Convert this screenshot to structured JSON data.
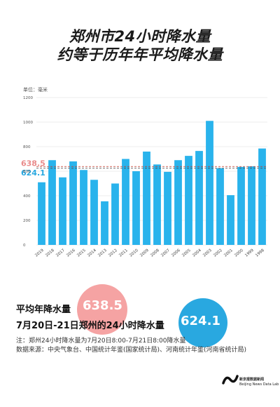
{
  "title_line1": "郑州市24小时降水量",
  "title_line2": "约等于历年年平均降水量",
  "unit_label": "单位：毫米",
  "chart_data": {
    "type": "bar",
    "categories": [
      "2019",
      "2018",
      "2017",
      "2016",
      "2015",
      "2014",
      "2013",
      "2012",
      "2011",
      "2010",
      "2009",
      "2008",
      "2007",
      "2006",
      "2005",
      "2004",
      "2003",
      "2002",
      "2001",
      "2000",
      "1999",
      "1998"
    ],
    "values": [
      510,
      690,
      550,
      680,
      610,
      530,
      355,
      500,
      700,
      600,
      760,
      655,
      595,
      690,
      725,
      765,
      1010,
      625,
      405,
      635,
      640,
      785
    ],
    "ylim": [
      0,
      1200
    ],
    "yticks": [
      0,
      200,
      400,
      600,
      800,
      1000,
      1200
    ],
    "reference_lines": [
      {
        "value": 638.5,
        "label": "638.5",
        "color": "#e98b8b"
      },
      {
        "value": 624.1,
        "label": "624.1",
        "color": "#29a8e0"
      }
    ],
    "bar_color": "#29b3ec",
    "grid": true
  },
  "legend": {
    "avg_label": "平均年降水量",
    "avg_value": "638.5",
    "rain_label": "7月20日-21日郑州的24小时降水量",
    "rain_value": "624.1"
  },
  "note1": "注：郑州24小时降水量为7月20日8:00-7月21日8:00降水量",
  "note2": "数据来源：中央气象台、中国统计年鉴(国家统计局)、河南统计年鉴(河南省统计局)",
  "logo": {
    "name": "新京报数据新闻",
    "sub": "Beijing News Data Lab"
  }
}
